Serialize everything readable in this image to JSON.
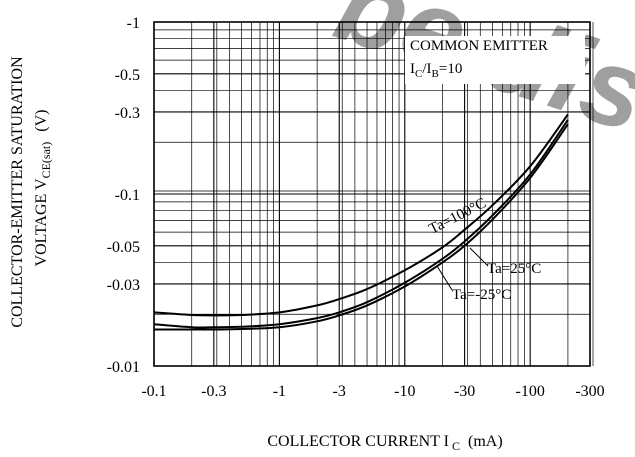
{
  "chart_data": {
    "type": "line",
    "title": "",
    "xlabel": {
      "main": "COLLECTOR CURRENT I",
      "sub": "C",
      "unit": "(mA)"
    },
    "ylabel": {
      "line1": "COLLECTOR-EMITTER SATURATION",
      "line2_main": "VOLTAGE V",
      "line2_sub": "CE(sat)",
      "unit": "(V)"
    },
    "x_scale": "log",
    "y_scale": "log",
    "xlim": [
      -0.1,
      -300
    ],
    "ylim": [
      -0.01,
      -1
    ],
    "grid": true,
    "x_ticks": [
      "-0.1",
      "-0.3",
      "-1",
      "-3",
      "-10",
      "-30",
      "-100",
      "-300"
    ],
    "y_ticks": [
      "-1",
      "-0.5",
      "-0.3",
      "-0.1",
      "-0.05",
      "-0.03",
      "-0.01"
    ],
    "annotation": {
      "line1": "COMMON EMITTER",
      "line2_i": "I",
      "line2_c": "C",
      "line2_mid": "/I",
      "line2_b": "B",
      "line2_end": "=10"
    },
    "series": [
      {
        "name": "Ta=100°C",
        "x": [
          -0.1,
          -0.2,
          -0.3,
          -0.5,
          -1,
          -2,
          -3,
          -5,
          -10,
          -20,
          -30,
          -50,
          -100,
          -200
        ],
        "y": [
          -0.0205,
          -0.0198,
          -0.0197,
          -0.0198,
          -0.0205,
          -0.0225,
          -0.0245,
          -0.028,
          -0.036,
          -0.049,
          -0.062,
          -0.086,
          -0.145,
          -0.29
        ]
      },
      {
        "name": "Ta=25°C",
        "x": [
          -0.1,
          -0.2,
          -0.3,
          -0.5,
          -1,
          -2,
          -3,
          -5,
          -10,
          -20,
          -30,
          -50,
          -100,
          -200
        ],
        "y": [
          -0.0175,
          -0.0168,
          -0.0168,
          -0.0169,
          -0.0175,
          -0.019,
          -0.0205,
          -0.0235,
          -0.0305,
          -0.042,
          -0.053,
          -0.075,
          -0.13,
          -0.27
        ]
      },
      {
        "name": "Ta=-25°C",
        "x": [
          -0.1,
          -0.2,
          -0.3,
          -0.5,
          -1,
          -2,
          -3,
          -5,
          -10,
          -20,
          -30,
          -50,
          -100,
          -200
        ],
        "y": [
          -0.0163,
          -0.0163,
          -0.0163,
          -0.0164,
          -0.0168,
          -0.0182,
          -0.0197,
          -0.0225,
          -0.029,
          -0.04,
          -0.05,
          -0.071,
          -0.124,
          -0.255
        ]
      }
    ]
  },
  "watermark": {
    "text": "be disc",
    "color": "#9a9a9a"
  }
}
